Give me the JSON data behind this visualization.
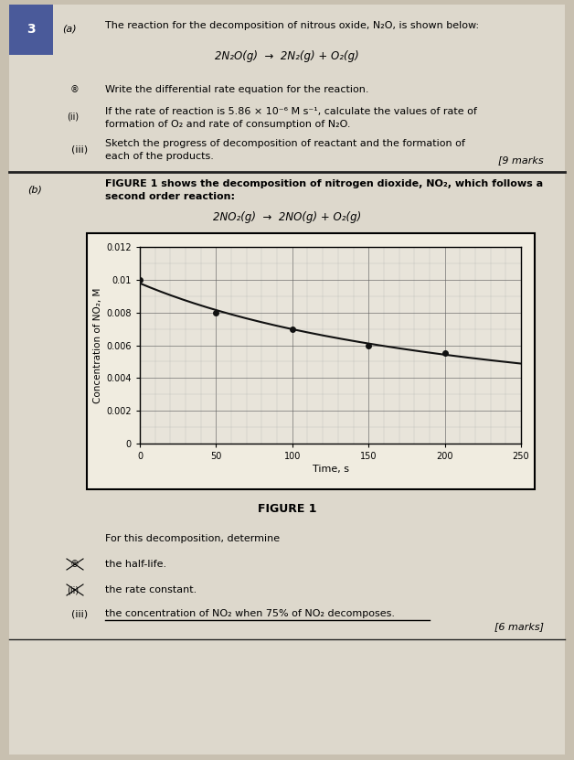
{
  "page_bg": "#c8c0b0",
  "paper_bg": "#ddd8cc",
  "graph_bg": "#e8e4da",
  "graph_line_color": "#111111",
  "graph_marker_color": "#111111",
  "question_number": "3",
  "part_a_intro": "The reaction for the decomposition of nitrous oxide, N₂O, is shown below:",
  "reaction_a": "2N₂O(g)  →  2N₂(g) + O₂(g)",
  "sub_i_a": "Write the differential rate equation for the reaction.",
  "sub_ii_a_1": "If the rate of reaction is 5.86 × 10⁻⁶ M s⁻¹, calculate the values of rate of",
  "sub_ii_a_2": "formation of O₂ and rate of consumption of N₂O.",
  "sub_iii_a_1": "Sketch the progress of decomposition of reactant and the formation of",
  "sub_iii_a_2": "each of the products.",
  "marks_a": "[9 marks",
  "part_b_intro_1": "FIGURE 1 shows the decomposition of nitrogen dioxide, NO₂, which follows a",
  "part_b_intro_2": "second order reaction:",
  "reaction_b": "2NO₂(g)  →  2NO(g) + O₂(g)",
  "graph_xlabel": "Time, s",
  "graph_ylabel": "Concentration of NO₂, M",
  "graph_xlim": [
    0,
    250
  ],
  "graph_ylim": [
    0,
    0.012
  ],
  "graph_xticks": [
    0,
    50,
    100,
    150,
    200,
    250
  ],
  "graph_yticks": [
    0,
    0.002,
    0.004,
    0.006,
    0.008,
    0.01,
    0.012
  ],
  "graph_ytick_labels": [
    "0",
    "0.002",
    "0.004",
    "0.006",
    "0.008",
    "0.01",
    "0.012"
  ],
  "data_x": [
    0,
    50,
    100,
    150,
    200
  ],
  "data_y": [
    0.01,
    0.008,
    0.007,
    0.006,
    0.0055
  ],
  "figure_label": "FIGURE 1",
  "part_b_sub_intro": "For this decomposition, determine",
  "sub_i_b": "the half-life.",
  "sub_ii_b": "the rate constant.",
  "sub_iii_b": "the concentration of NO₂ when 75% of NO₂ decomposes.",
  "marks_b": "[6 marks]",
  "top_bar_color": "#4a5a9a",
  "divider_color": "#222222"
}
